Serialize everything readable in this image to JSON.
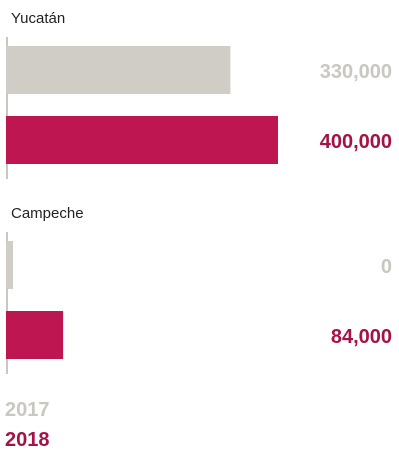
{
  "chart_data": {
    "type": "bar",
    "orientation": "horizontal",
    "categories": [
      "Yucatán",
      "Campeche"
    ],
    "series": [
      {
        "name": "2017",
        "values": [
          330000,
          0
        ],
        "value_labels": [
          "330,000",
          "0"
        ],
        "color": "#cfcdc5",
        "label_color": "#c9c7bf"
      },
      {
        "name": "2018",
        "values": [
          400000,
          84000
        ],
        "value_labels": [
          "400,000",
          "84,000"
        ],
        "color": "#be1650",
        "label_color": "#a51346"
      }
    ],
    "xlim": [
      0,
      400000
    ],
    "axis_color": "#c9c7bf",
    "legend_position": "bottom-left",
    "grid": false
  }
}
